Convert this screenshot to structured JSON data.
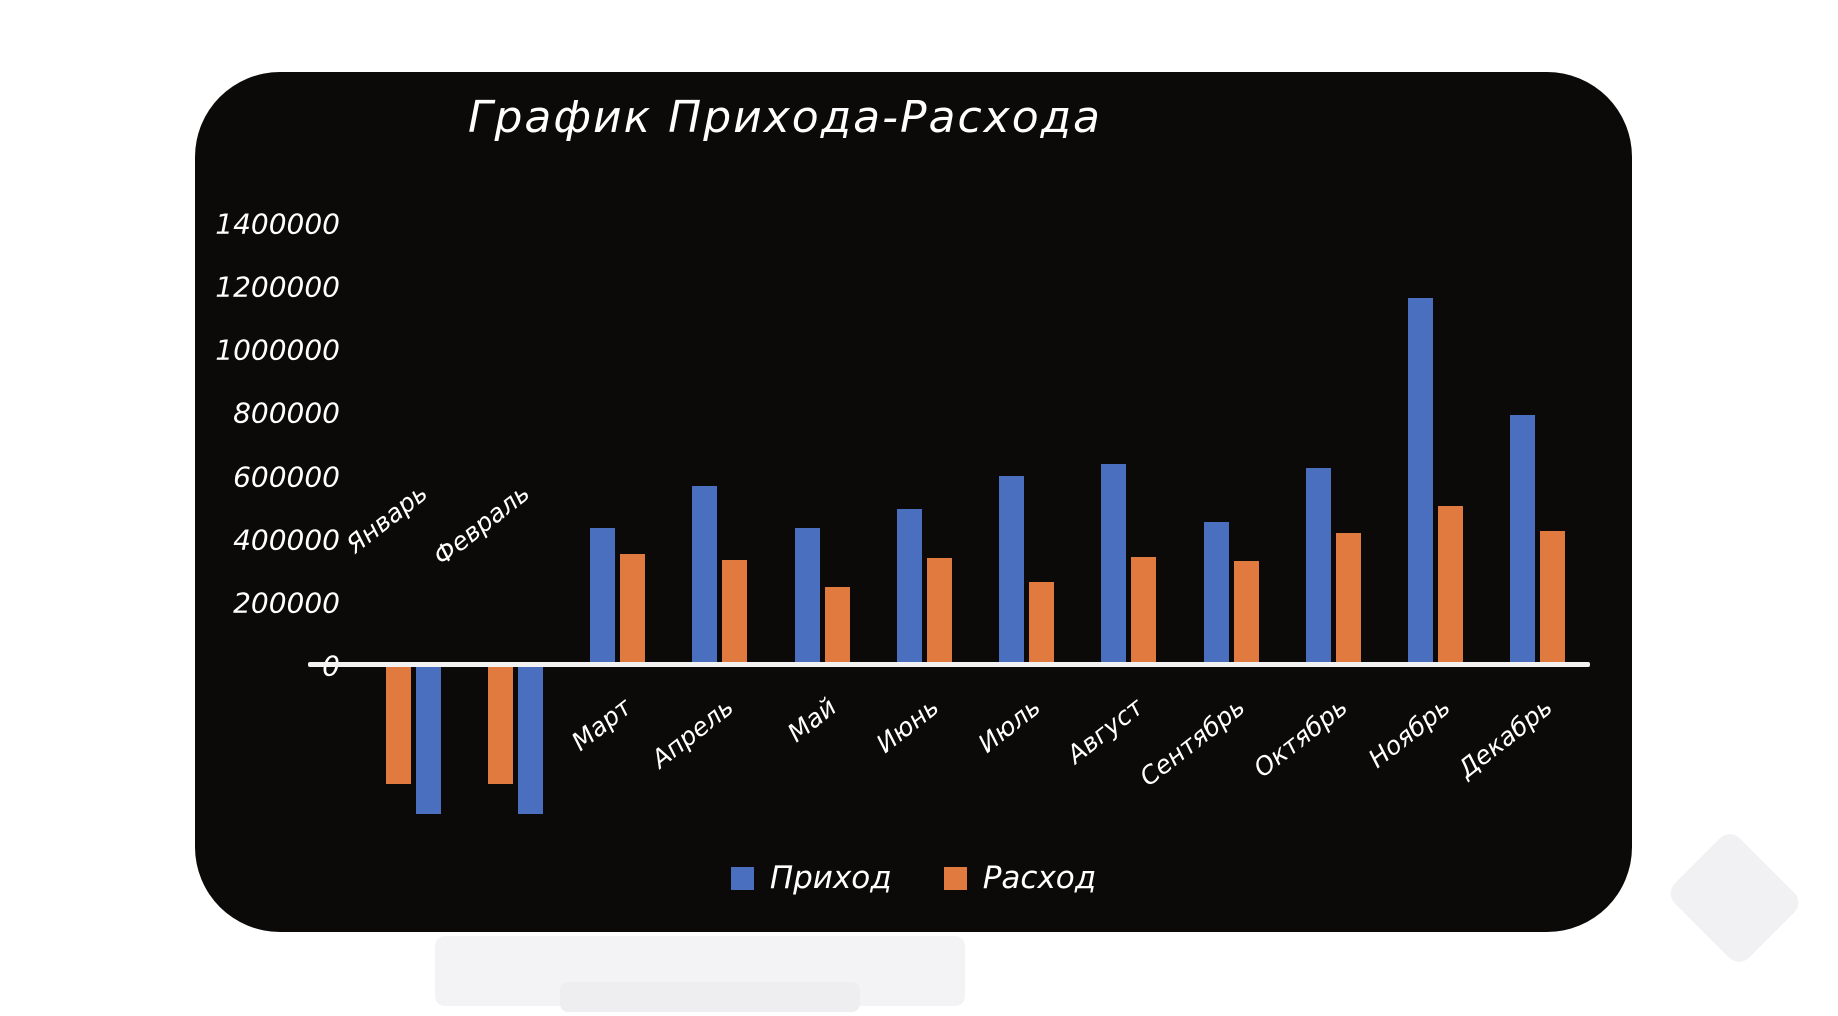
{
  "page": {
    "background": "#ffffff"
  },
  "panel": {
    "background": "#0b0a09",
    "text_color": "#ffffff",
    "axis_color": "#f2f2f2"
  },
  "chart_data": {
    "type": "bar",
    "title": "График Прихода-Расхода",
    "categories": [
      "Январь",
      "Февраль",
      "Март",
      "Апрель",
      "Май",
      "Июнь",
      "Июль",
      "Август",
      "Сентябрь",
      "Октябрь",
      "Ноябрь",
      "Декабрь"
    ],
    "series": [
      {
        "name": "Приход",
        "color": "#4A6FBE",
        "values": [
          -470000,
          -470000,
          430000,
          565000,
          430000,
          490000,
          595000,
          635000,
          450000,
          620000,
          1160000,
          790000
        ]
      },
      {
        "name": "Расход",
        "color": "#E07A3E",
        "values": [
          -375000,
          -375000,
          350000,
          330000,
          245000,
          335000,
          260000,
          340000,
          325000,
          415000,
          500000,
          420000
        ]
      }
    ],
    "y_axis": {
      "min": 0,
      "max": 1400000,
      "step": 200000,
      "tick_labels": [
        "0",
        "200000",
        "400000",
        "600000",
        "800000",
        "1000000",
        "1200000",
        "1400000"
      ]
    },
    "legend": {
      "position": "bottom",
      "entries": [
        "Приход",
        "Расход"
      ]
    },
    "layout_hints": {
      "grid": false,
      "background": "#0b0a09",
      "negative_months_draw_expense_first": true,
      "category_labels_rotated_deg": -38,
      "negative_month_labels_above_axis": true
    }
  }
}
